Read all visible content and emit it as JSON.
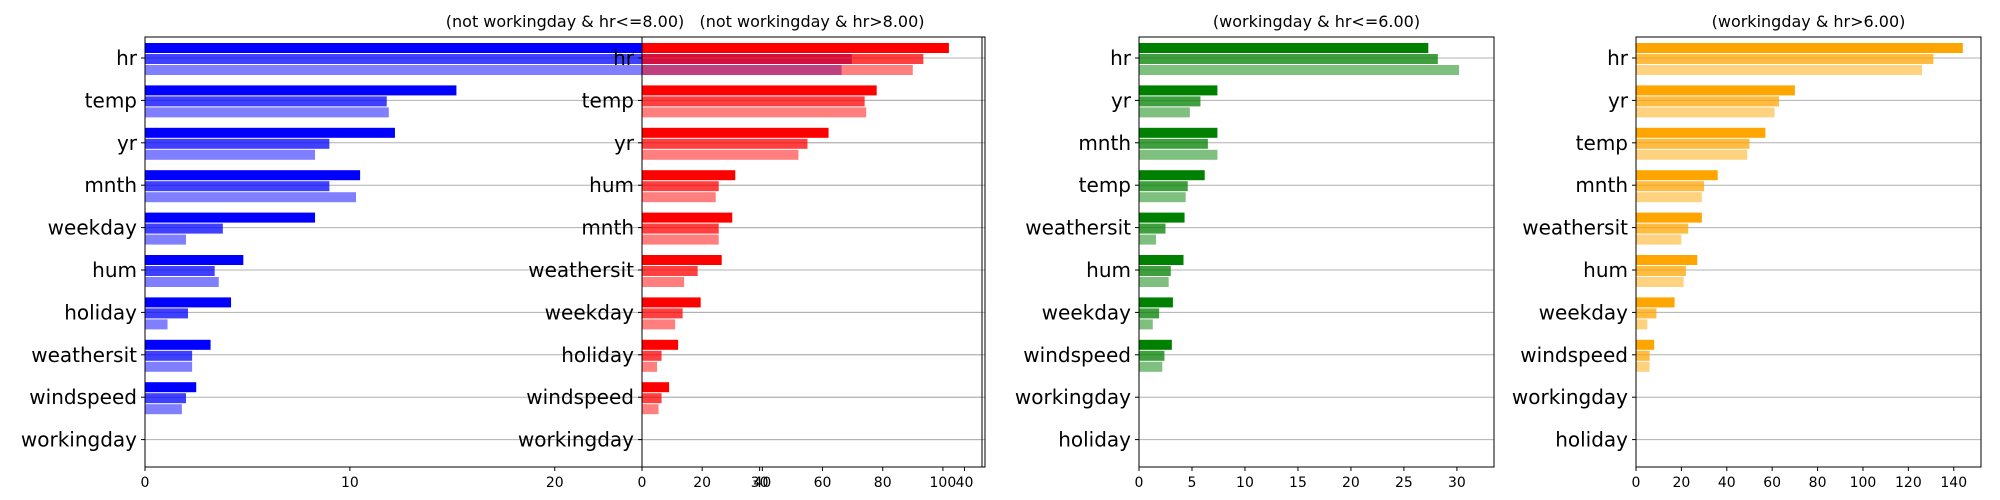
{
  "chart_data": [
    {
      "type": "bar",
      "orientation": "horizontal",
      "title": "(not workingday & hr<=8.00)",
      "color": "#0000ff",
      "grid": "horizontal",
      "xlim": [
        0,
        41
      ],
      "xticks": [
        0,
        10,
        20,
        30,
        40
      ],
      "categories": [
        "hr",
        "temp",
        "yr",
        "mnth",
        "weekday",
        "hum",
        "holiday",
        "weathersit",
        "windspeed",
        "workingday"
      ],
      "series": [
        {
          "opacity": 1.0,
          "values": [
            36.8,
            15.2,
            12.2,
            10.5,
            8.3,
            4.8,
            4.2,
            3.2,
            2.5,
            0
          ]
        },
        {
          "opacity": 0.75,
          "values": [
            34.5,
            11.8,
            9.0,
            9.0,
            3.8,
            3.4,
            2.1,
            2.3,
            2.0,
            0
          ]
        },
        {
          "opacity": 0.5,
          "values": [
            34.0,
            11.9,
            8.3,
            10.3,
            2.0,
            3.6,
            1.1,
            2.3,
            1.8,
            0
          ]
        }
      ]
    },
    {
      "type": "bar",
      "orientation": "horizontal",
      "title": "(not workingday & hr>8.00)",
      "color": "#ff0000",
      "grid": "horizontal",
      "xlim": [
        0,
        113
      ],
      "xticks": [
        0,
        20,
        40,
        60,
        80,
        100
      ],
      "categories": [
        "hr",
        "temp",
        "yr",
        "hum",
        "mnth",
        "weathersit",
        "weekday",
        "holiday",
        "windspeed",
        "workingday"
      ],
      "series": [
        {
          "opacity": 1.0,
          "values": [
            102,
            78,
            62,
            31,
            30,
            26.5,
            19.5,
            12,
            9,
            0
          ]
        },
        {
          "opacity": 0.75,
          "values": [
            93.5,
            74,
            55,
            25.5,
            25.5,
            18.5,
            13.5,
            6.5,
            6.5,
            0
          ]
        },
        {
          "opacity": 0.5,
          "values": [
            90,
            74.5,
            52,
            24.5,
            25.5,
            14,
            11,
            5,
            5.5,
            0
          ]
        }
      ]
    },
    {
      "type": "bar",
      "orientation": "horizontal",
      "title": "(workingday & hr<=6.00)",
      "color": "#008000",
      "grid": "horizontal",
      "xlim": [
        0,
        33.5
      ],
      "xticks": [
        0,
        5,
        10,
        15,
        20,
        25,
        30
      ],
      "categories": [
        "hr",
        "yr",
        "mnth",
        "temp",
        "weathersit",
        "hum",
        "weekday",
        "windspeed",
        "workingday",
        "holiday"
      ],
      "series": [
        {
          "opacity": 1.0,
          "values": [
            27.3,
            7.4,
            7.4,
            6.2,
            4.3,
            4.2,
            3.2,
            3.1,
            0,
            0
          ]
        },
        {
          "opacity": 0.75,
          "values": [
            28.2,
            5.8,
            6.5,
            4.6,
            2.5,
            3.0,
            1.9,
            2.4,
            0,
            0
          ]
        },
        {
          "opacity": 0.5,
          "values": [
            30.2,
            4.8,
            7.4,
            4.4,
            1.6,
            2.8,
            1.3,
            2.2,
            0,
            0
          ]
        }
      ]
    },
    {
      "type": "bar",
      "orientation": "horizontal",
      "title": "(workingday & hr>6.00)",
      "color": "#ffa500",
      "grid": "horizontal",
      "xlim": [
        0,
        152
      ],
      "xticks": [
        0,
        20,
        40,
        60,
        80,
        100,
        120,
        140
      ],
      "categories": [
        "hr",
        "yr",
        "temp",
        "mnth",
        "weathersit",
        "hum",
        "weekday",
        "windspeed",
        "workingday",
        "holiday"
      ],
      "series": [
        {
          "opacity": 1.0,
          "values": [
            144,
            70,
            57,
            36,
            29,
            27,
            17,
            8,
            0,
            0
          ]
        },
        {
          "opacity": 0.75,
          "values": [
            131,
            63,
            50,
            30,
            23,
            22,
            9,
            6,
            0,
            0
          ]
        },
        {
          "opacity": 0.5,
          "values": [
            126,
            61,
            49,
            29,
            20,
            21,
            5,
            6,
            0,
            0
          ]
        }
      ]
    }
  ]
}
